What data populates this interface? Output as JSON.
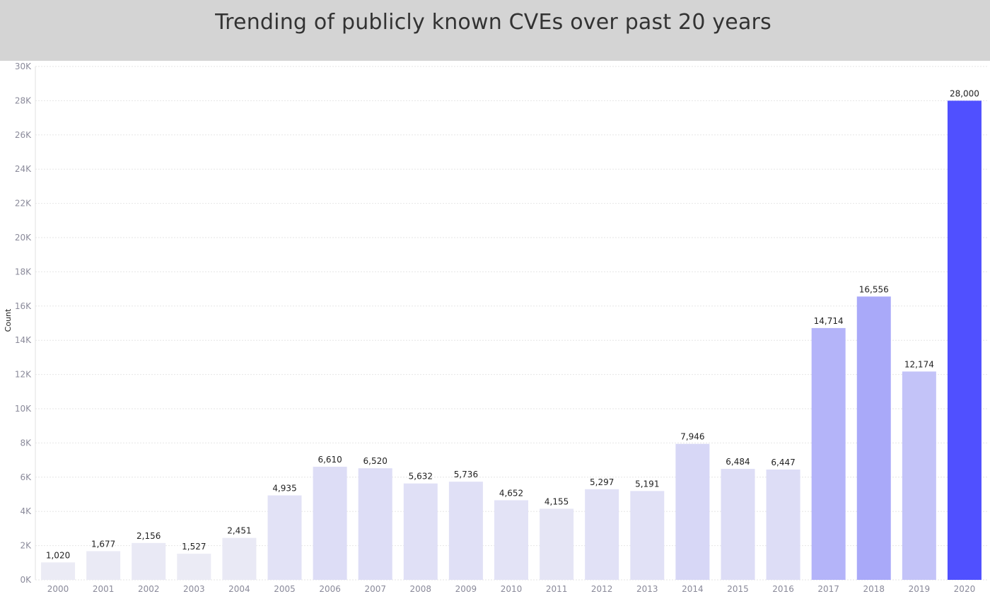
{
  "header": {
    "title": "Trending of publicly known CVEs over past 20 years"
  },
  "chart_data": {
    "type": "bar",
    "title": "Trending of publicly known CVEs over past 20 years",
    "xlabel": "",
    "ylabel": "Count",
    "ylim": [
      0,
      30000
    ],
    "grid": true,
    "y_ticks": [
      "0K",
      "2K",
      "4K",
      "6K",
      "8K",
      "10K",
      "12K",
      "14K",
      "16K",
      "18K",
      "20K",
      "22K",
      "24K",
      "26K",
      "28K",
      "30K"
    ],
    "categories": [
      "2000",
      "2001",
      "2002",
      "2003",
      "2004",
      "2005",
      "2006",
      "2007",
      "2008",
      "2009",
      "2010",
      "2011",
      "2012",
      "2013",
      "2014",
      "2015",
      "2016",
      "2017",
      "2018",
      "2019",
      "2020"
    ],
    "values": [
      1020,
      1677,
      2156,
      1527,
      2451,
      4935,
      6610,
      6520,
      5632,
      5736,
      4652,
      4155,
      5297,
      5191,
      7946,
      6484,
      6447,
      14714,
      16556,
      12174,
      28000
    ],
    "value_labels": [
      "1,020",
      "1,677",
      "2,156",
      "1,527",
      "2,451",
      "4,935",
      "6,610",
      "6,520",
      "5,632",
      "5,736",
      "4,652",
      "4,155",
      "5,297",
      "5,191",
      "7,946",
      "6,484",
      "6,447",
      "14,714",
      "16,556",
      "12,174",
      "28,000"
    ],
    "colors": {
      "low": "#ececf5",
      "high": "#5050ff",
      "text": "#222222",
      "tick": "#8a8a9a",
      "grid": "#e6e6e6",
      "header_bg": "#d4d4d4"
    }
  }
}
